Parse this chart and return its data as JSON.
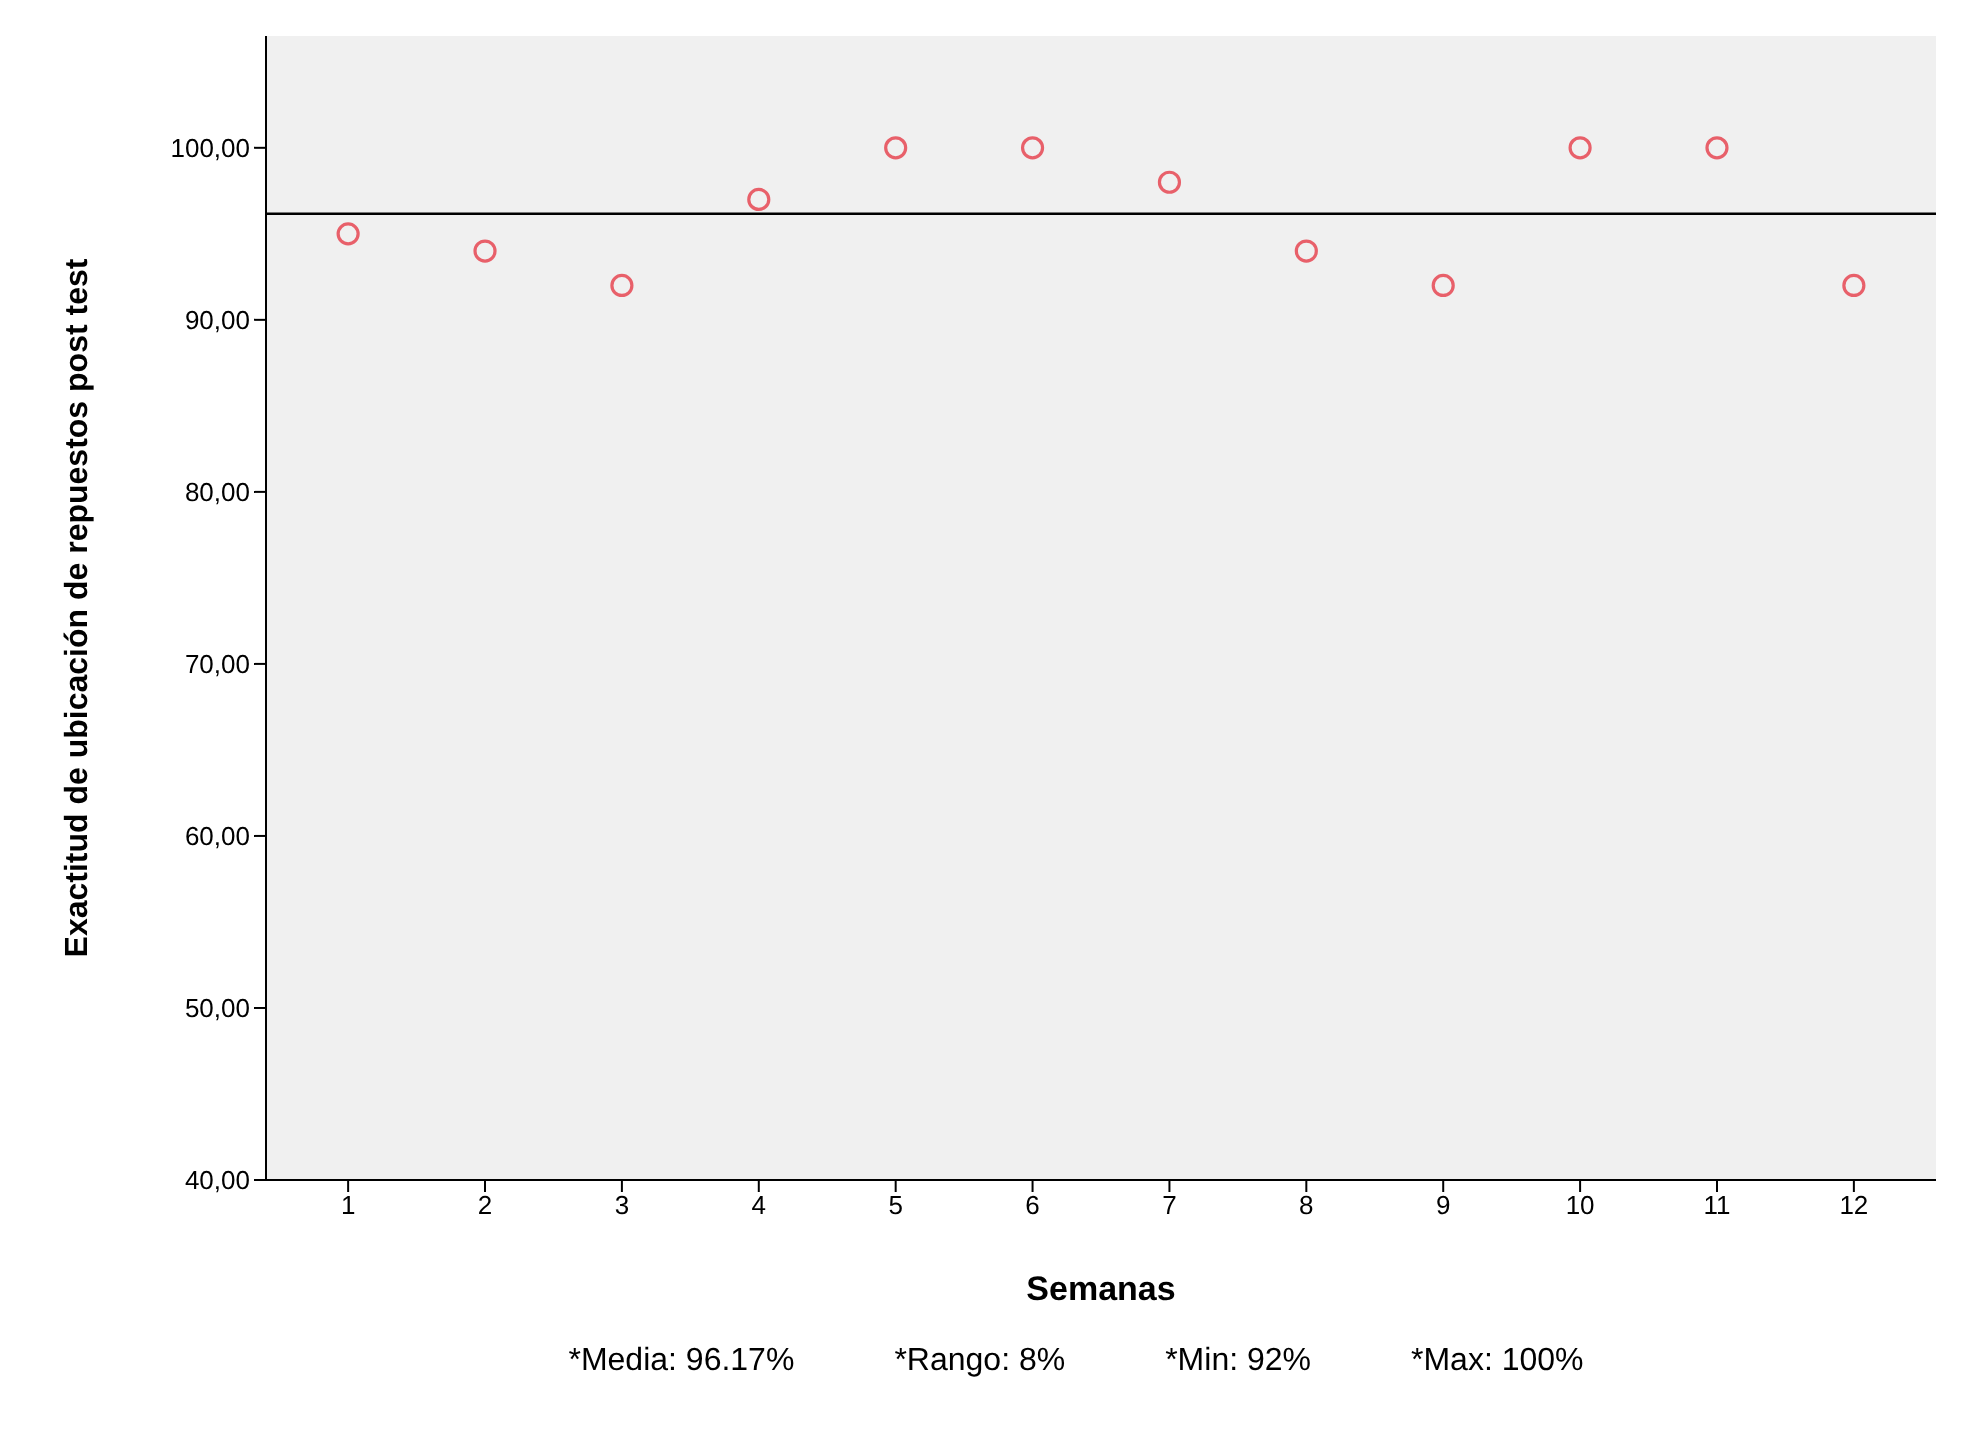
{
  "chart_data": {
    "type": "scatter",
    "xlabel": "Semanas",
    "ylabel": "Exactitud de ubicación de repuestos post test",
    "x": [
      1,
      2,
      3,
      4,
      5,
      6,
      7,
      8,
      9,
      10,
      11,
      12
    ],
    "series": [
      {
        "color": "#e8606a",
        "values": [
          95,
          94,
          92,
          97,
          100,
          100,
          98,
          94,
          92,
          100,
          100,
          92
        ]
      }
    ],
    "xlim": [
      0.4,
      12.6
    ],
    "xticks": [
      1,
      2,
      3,
      4,
      5,
      6,
      7,
      8,
      9,
      10,
      11,
      12
    ],
    "ylim": [
      40,
      106.5
    ],
    "yticks": [
      {
        "value": 40,
        "label": "40,00"
      },
      {
        "value": 50,
        "label": "50,00"
      },
      {
        "value": 60,
        "label": "60,00"
      },
      {
        "value": 70,
        "label": "70,00"
      },
      {
        "value": 80,
        "label": "80,00"
      },
      {
        "value": 90,
        "label": "90,00"
      },
      {
        "value": 100,
        "label": "100,00"
      }
    ],
    "ref_lines": [
      {
        "axis": "y",
        "value": 96.17,
        "color": "#000000"
      }
    ],
    "marker": "circle",
    "grid": false,
    "legend": false,
    "annotations": [
      "*Media: 96.17%",
      "*Rango: 8%",
      "*Min: 92%",
      "*Max: 100%"
    ]
  }
}
